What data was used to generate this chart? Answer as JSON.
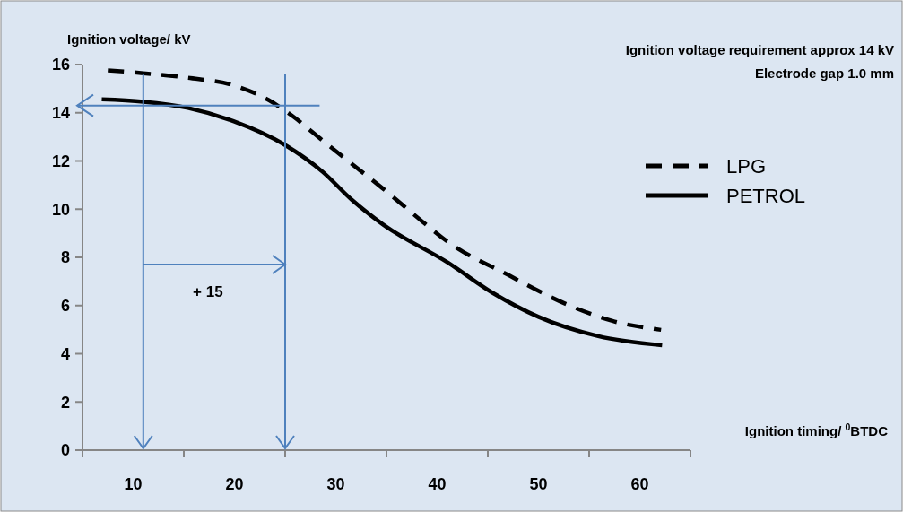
{
  "chart_data": {
    "type": "line",
    "xlabel": "Ignition timing/ $^{0}$BTDC",
    "ylabel": "Ignition voltage/ kV",
    "xlim": [
      5,
      65
    ],
    "xticks": [
      {
        "value": 5,
        "label": null
      },
      10,
      {
        "value": 15,
        "label": null
      },
      20,
      {
        "value": 25,
        "label": null
      },
      30,
      {
        "value": 35,
        "label": null
      },
      40,
      {
        "value": 45,
        "label": null
      },
      50,
      {
        "value": 55,
        "label": null
      },
      60,
      {
        "value": 65,
        "label": null
      }
    ],
    "ylim": [
      0,
      16
    ],
    "yticks": [
      0,
      2,
      4,
      6,
      8,
      10,
      12,
      14,
      16
    ],
    "grid": false,
    "legend": "right",
    "series": [
      {
        "name": "LPG",
        "color": "#000000",
        "line_style": "dashed",
        "x": [
          7.5,
          11,
          15.4,
          19.9,
          23.4,
          25.8,
          28.7,
          31.6,
          34.6,
          38.5,
          41.1,
          47,
          52.9,
          57.3,
          62.1
        ],
        "values": [
          15.76,
          15.64,
          15.45,
          15.14,
          14.52,
          13.84,
          12.85,
          11.87,
          10.87,
          9.5,
          8.63,
          7.27,
          6.03,
          5.36,
          4.99
        ]
      },
      {
        "name": "PETROL",
        "color": "#000000",
        "line_style": "solid",
        "x": [
          6.9,
          11,
          15.4,
          19.9,
          25,
          28.7,
          31.6,
          34.6,
          41.1,
          45.5,
          50,
          55.9,
          62.2
        ],
        "values": [
          14.56,
          14.46,
          14.2,
          13.65,
          12.66,
          11.55,
          10.38,
          9.38,
          7.77,
          6.52,
          5.53,
          4.73,
          4.35
        ]
      }
    ],
    "ref_lines": [
      {
        "axis": "y",
        "value": 14.3,
        "color": "#4f81bd"
      },
      {
        "axis": "x",
        "value": 11,
        "color": "#4f81bd"
      },
      {
        "axis": "x",
        "value": 25,
        "color": "#4f81bd"
      }
    ],
    "annotations": [
      "Ignition voltage requirement approx 14 kV",
      "Electrode gap 1.0 mm",
      "+ 15"
    ]
  }
}
